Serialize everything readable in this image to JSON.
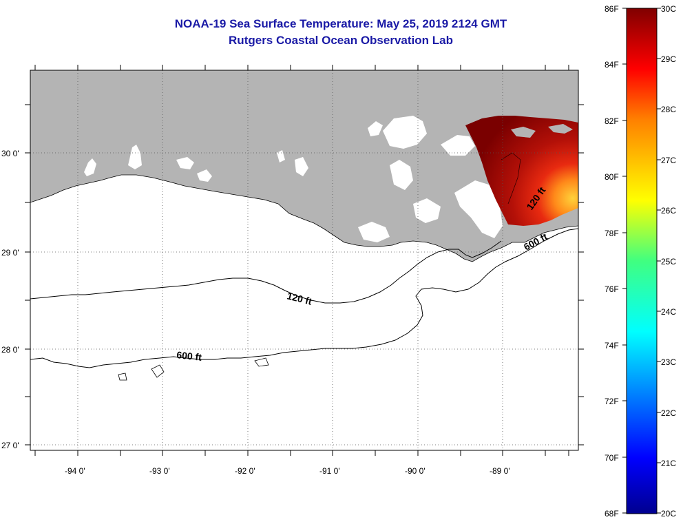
{
  "title": {
    "line1": "NOAA-19 Sea Surface Temperature:  May 25, 2019 2124 GMT",
    "line2": "Rutgers Coastal Ocean Observation Lab"
  },
  "axes": {
    "lat_labels": [
      "30 0'",
      "29 0'",
      "28 0'",
      "27 0'"
    ],
    "lon_labels": [
      "-94 0'",
      "-93 0'",
      "-92 0'",
      "-91 0'",
      "-90 0'",
      "-89 0'"
    ]
  },
  "contours": {
    "c120_west": "120 ft",
    "c600_west": "600 ft",
    "c120_east": "120 ft",
    "c600_east": "600 ft"
  },
  "colorbar": {
    "f_labels": [
      "86F",
      "84F",
      "82F",
      "80F",
      "78F",
      "76F",
      "74F",
      "72F",
      "70F",
      "68F"
    ],
    "c_labels": [
      "30C",
      "29C",
      "28C",
      "27C",
      "26C",
      "25C",
      "24C",
      "23C",
      "22C",
      "21C",
      "20C"
    ]
  },
  "colors": {
    "land": "#b4b4b4",
    "water": "#ffffff",
    "title": "#1a1aa6"
  }
}
